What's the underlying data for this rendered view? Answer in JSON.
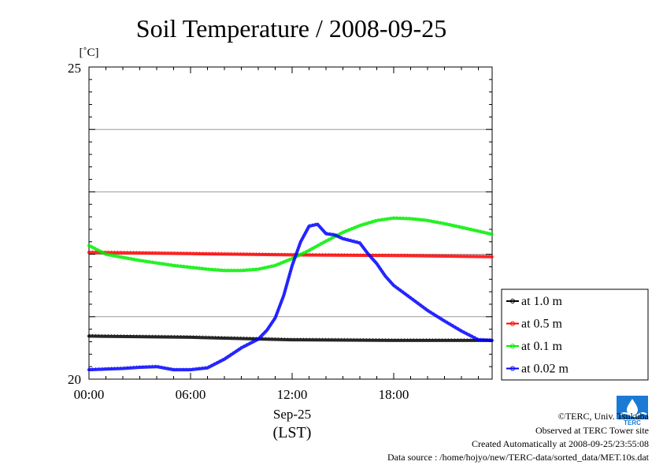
{
  "chart_data": {
    "type": "line",
    "title": "Soil Temperature / 2008-09-25",
    "ylabel": "[˚C]",
    "ylim": [
      20,
      25
    ],
    "ytick_labels": [
      "25",
      "20"
    ],
    "xlim_hours": [
      0,
      23.8
    ],
    "xtick_labels": [
      "00:00",
      "06:00",
      "12:00",
      "18:00"
    ],
    "xlabel_date": "Sep-25",
    "xlabel_tz": "(LST)",
    "grid": "horizontal",
    "legend_placement": "right",
    "series": [
      {
        "name": "at 1.0 m",
        "color": "#000000",
        "x": [
          0,
          6,
          12,
          18,
          23.8
        ],
        "y": [
          20.69,
          20.67,
          20.63,
          20.62,
          20.62
        ]
      },
      {
        "name": "at 0.5 m",
        "color": "#ff0000",
        "x": [
          0,
          6,
          12,
          18,
          23.8
        ],
        "y": [
          22.03,
          22.01,
          21.99,
          21.98,
          21.96
        ]
      },
      {
        "name": "at 0.1 m",
        "color": "#00ee00",
        "x": [
          0,
          1,
          2,
          3,
          4,
          5,
          6,
          7,
          8,
          9,
          10,
          11,
          12,
          13,
          14,
          15,
          16,
          17,
          18,
          19,
          20,
          21,
          22,
          23,
          23.8
        ],
        "y": [
          22.14,
          22.0,
          21.95,
          21.9,
          21.86,
          21.82,
          21.79,
          21.76,
          21.74,
          21.74,
          21.76,
          21.82,
          21.93,
          22.06,
          22.21,
          22.35,
          22.46,
          22.54,
          22.58,
          22.57,
          22.54,
          22.49,
          22.43,
          22.37,
          22.32
        ]
      },
      {
        "name": "at 0.02 m",
        "color": "#0000ff",
        "x": [
          0,
          1,
          2,
          3,
          4,
          5,
          6,
          7,
          8,
          9,
          10,
          10.5,
          11,
          11.5,
          12,
          12.5,
          13,
          13.5,
          14,
          14.5,
          15,
          16,
          16.5,
          17,
          17.5,
          18,
          19,
          20,
          21,
          22,
          23,
          23.8
        ],
        "y": [
          20.15,
          20.16,
          20.17,
          20.19,
          20.2,
          20.15,
          20.15,
          20.18,
          20.32,
          20.5,
          20.64,
          20.78,
          20.98,
          21.34,
          21.82,
          22.2,
          22.45,
          22.48,
          22.33,
          22.31,
          22.25,
          22.18,
          22.0,
          21.85,
          21.65,
          21.5,
          21.3,
          21.1,
          20.93,
          20.77,
          20.63,
          20.62
        ]
      }
    ]
  },
  "credits": {
    "copyright": "©TERC, Univ. Tsukuba",
    "observed": "Observed at TERC Tower site",
    "created": "Created Automatically at 2008-09-25/23:55:08",
    "source": "Data source : /home/hojyo/new/TERC-data/sorted_data/MET.10s.dat"
  },
  "logo": {
    "text": "TERC",
    "color": "#1a7ad4"
  }
}
